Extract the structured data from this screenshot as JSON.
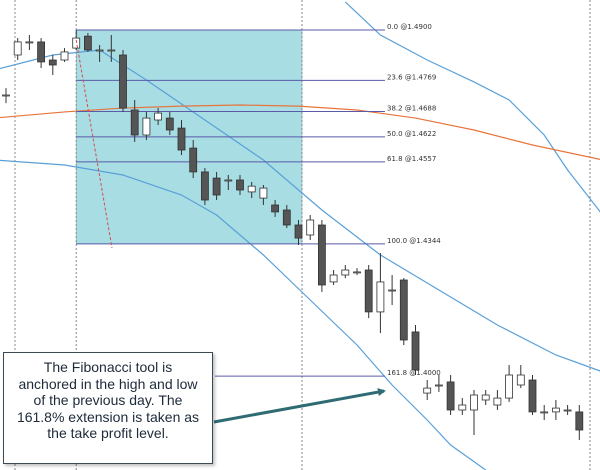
{
  "chart_data": {
    "type": "candlestick",
    "ylim": [
      1.3756,
      1.4978
    ],
    "bull_color": "#ffffff",
    "bear_color": "#555555",
    "candles": {
      "open": [
        1.4731,
        1.4835,
        1.4869,
        1.4869,
        1.4822,
        1.4822,
        1.4853,
        1.4884,
        1.4848,
        1.4848,
        1.4835,
        1.4692,
        1.4627,
        1.4666,
        1.4671,
        1.4645,
        1.4593,
        1.4531,
        1.4515,
        1.451,
        1.451,
        1.4479,
        1.4463,
        1.4445,
        1.4432,
        1.4393,
        1.4367,
        1.4393,
        1.4245,
        1.4263,
        1.4271,
        1.4276,
        1.4167,
        1.4224,
        1.425,
        1.4115,
        1.3956,
        1.3977,
        1.3985,
        1.3912,
        1.3912,
        1.3938,
        1.3925,
        1.3943,
        1.3977,
        1.399,
        1.3907,
        1.3907,
        1.3912,
        1.3907
      ],
      "high": [
        1.4749,
        1.4879,
        1.4887,
        1.4879,
        1.4835,
        1.4853,
        1.49,
        1.4892,
        1.4861,
        1.4887,
        1.4848,
        1.4718,
        1.4687,
        1.4697,
        1.4687,
        1.4666,
        1.4614,
        1.4541,
        1.4531,
        1.4523,
        1.4523,
        1.4505,
        1.4497,
        1.4458,
        1.4445,
        1.4406,
        1.4419,
        1.4406,
        1.4276,
        1.4289,
        1.4281,
        1.4289,
        1.432,
        1.4263,
        1.4255,
        1.4133,
        1.399,
        1.4003,
        1.4003,
        1.3943,
        1.3964,
        1.3964,
        1.3964,
        1.4029,
        1.4029,
        1.4003,
        1.3925,
        1.3938,
        1.3925,
        1.3925
      ],
      "low": [
        1.471,
        1.4822,
        1.4848,
        1.4801,
        1.4783,
        1.4817,
        1.4848,
        1.4843,
        1.4817,
        1.4817,
        1.4687,
        1.4609,
        1.4614,
        1.4653,
        1.4627,
        1.4575,
        1.4515,
        1.4445,
        1.4458,
        1.4484,
        1.4471,
        1.4463,
        1.4445,
        1.4414,
        1.4385,
        1.4341,
        1.4354,
        1.4219,
        1.4237,
        1.4255,
        1.4263,
        1.4151,
        1.4112,
        1.4185,
        1.4081,
        1.4003,
        1.3938,
        1.3959,
        1.3899,
        1.3899,
        1.3847,
        1.3925,
        1.3912,
        1.3933,
        1.3969,
        1.3899,
        1.3886,
        1.3886,
        1.3899,
        1.3834
      ],
      "close": [
        1.4731,
        1.4869,
        1.4869,
        1.4817,
        1.4809,
        1.4843,
        1.4879,
        1.4848,
        1.4848,
        1.4848,
        1.4697,
        1.4627,
        1.4671,
        1.4684,
        1.464,
        1.4588,
        1.4531,
        1.4458,
        1.4471,
        1.451,
        1.4484,
        1.4494,
        1.4489,
        1.4427,
        1.4393,
        1.4359,
        1.4406,
        1.4237,
        1.4263,
        1.4276,
        1.4271,
        1.4167,
        1.4245,
        1.4224,
        1.4094,
        1.4016,
        1.3969,
        1.3977,
        1.3912,
        1.3925,
        1.3951,
        1.3951,
        1.3943,
        1.4003,
        1.4003,
        1.3907,
        1.3907,
        1.3917,
        1.3912,
        1.386
      ]
    },
    "lines": [
      {
        "color": "#5aa0d8",
        "x": [
          29,
          32,
          36,
          40,
          43,
          46,
          48,
          51
        ],
        "values": [
          1.4973,
          1.4887,
          1.4822,
          1.4765,
          1.4718,
          1.4627,
          1.4536,
          1.4419
        ]
      },
      {
        "color": "#5aa0d8",
        "x": [
          -1,
          4,
          8,
          12,
          17,
          22,
          27,
          32,
          37,
          42,
          47,
          51
        ],
        "values": [
          1.4796,
          1.4835,
          1.4848,
          1.477,
          1.4666,
          1.4562,
          1.4432,
          1.4315,
          1.4224,
          1.4133,
          1.4055,
          1.4011
        ]
      },
      {
        "color": "#5aa0d8",
        "x": [
          -1,
          5,
          10,
          15,
          18,
          22,
          26,
          30,
          33,
          36,
          38,
          41
        ],
        "values": [
          1.4562,
          1.4549,
          1.4523,
          1.4471,
          1.4419,
          1.4315,
          1.4198,
          1.4081,
          1.3977,
          1.3886,
          1.3821,
          1.3756
        ]
      },
      {
        "color": "#e8743b",
        "x": [
          -1,
          5,
          10,
          15,
          20,
          25,
          30,
          35,
          40,
          45,
          51
        ],
        "values": [
          1.4671,
          1.4687,
          1.4697,
          1.4702,
          1.4705,
          1.4702,
          1.4692,
          1.4671,
          1.464,
          1.4601,
          1.4562
        ]
      }
    ],
    "fib_color": "#5a5aa8",
    "fib_zone_color": "#a8dde3",
    "fib_levels": [
      {
        "value": 1.49,
        "label": "0.0 @1.4900"
      },
      {
        "value": 1.4769,
        "label": "23.6 @1.4769"
      },
      {
        "value": 1.4688,
        "label": "38.2 @1.4688"
      },
      {
        "value": 1.4622,
        "label": "50.0 @1.4622"
      },
      {
        "value": 1.4557,
        "label": "61.8 @1.4557"
      },
      {
        "value": 1.4344,
        "label": "100.0 @1.4344"
      },
      {
        "value": 1.4,
        "label": "161.8 @1.4000"
      }
    ],
    "annotation": "The Fibonacci tool is anchored in the high and low of the previous day. The 161.8% extension is taken as the take profit level."
  }
}
